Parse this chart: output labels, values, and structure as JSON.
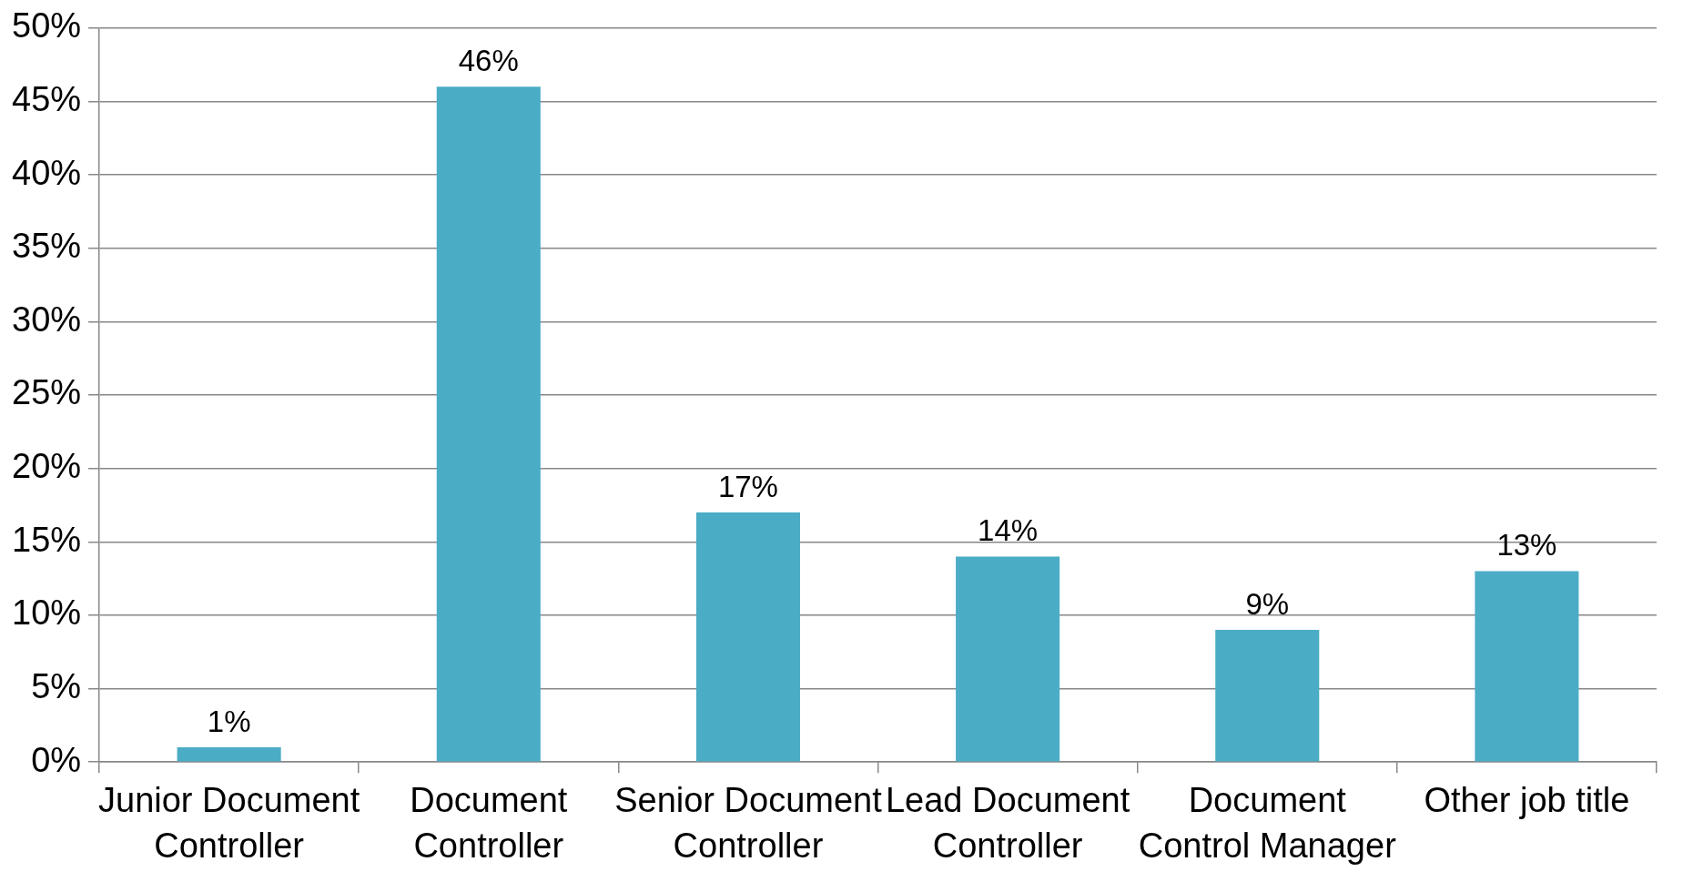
{
  "chart_data": {
    "type": "bar",
    "categories": [
      "Junior Document Controller",
      "Document Controller",
      "Senior Document Controller",
      "Lead Document Controller",
      "Document Control Manager",
      "Other job title"
    ],
    "values": [
      1,
      46,
      17,
      14,
      9,
      13
    ],
    "value_labels": [
      "1%",
      "46%",
      "17%",
      "14%",
      "9%",
      "13%"
    ],
    "color": "#4bacc6",
    "ylim": [
      0,
      50
    ],
    "yticks": [
      {
        "value": 0,
        "label": "0%"
      },
      {
        "value": 5,
        "label": "5%"
      },
      {
        "value": 10,
        "label": "10%"
      },
      {
        "value": 15,
        "label": "15%"
      },
      {
        "value": 20,
        "label": "20%"
      },
      {
        "value": 25,
        "label": "25%"
      },
      {
        "value": 30,
        "label": "30%"
      },
      {
        "value": 35,
        "label": "35%"
      },
      {
        "value": 40,
        "label": "40%"
      },
      {
        "value": 45,
        "label": "45%"
      },
      {
        "value": 50,
        "label": "50%"
      }
    ],
    "grid": "y"
  }
}
